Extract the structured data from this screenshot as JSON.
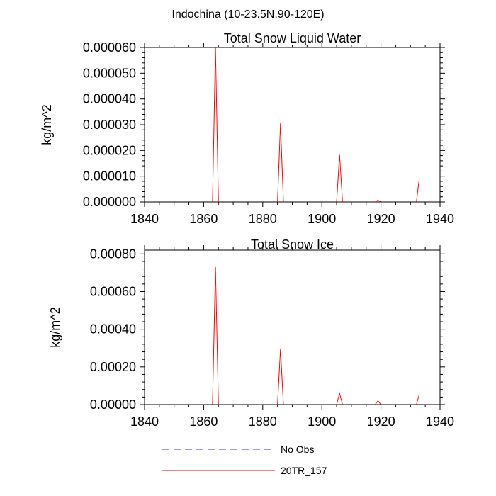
{
  "figure_title": "Indochina (10-23.5N,90-120E)",
  "colors": {
    "model": "#ff0000",
    "obs": "#3333cc",
    "axis": "#000000"
  },
  "legend": [
    {
      "label": "No Obs",
      "style": "dashed",
      "color": "#3333cc"
    },
    {
      "label": "20TR_157",
      "style": "solid",
      "color": "#ff0000"
    }
  ],
  "chart_data": [
    {
      "type": "line",
      "title": "Total Snow Liquid Water",
      "xlabel": "",
      "ylabel": "kg/m^2",
      "xlim": [
        1840,
        1940
      ],
      "ylim": [
        0,
        6e-05
      ],
      "xticks": [
        1840,
        1860,
        1880,
        1900,
        1920,
        1940
      ],
      "xtick_labels": [
        "1840",
        "1860",
        "1880",
        "1900",
        "1920",
        "1940"
      ],
      "yticks": [
        0,
        1e-05,
        2e-05,
        3e-05,
        4e-05,
        5e-05,
        6e-05
      ],
      "ytick_labels": [
        "0.000000",
        "0.000010",
        "0.000020",
        "0.000030",
        "0.000040",
        "0.000050",
        "0.000060"
      ],
      "series": [
        {
          "name": "20TR_157",
          "x": [
            1863,
            1864,
            1865,
            1885,
            1886,
            1887,
            1905,
            1906,
            1907,
            1918,
            1919,
            1920,
            1932,
            1933
          ],
          "values": [
            0,
            6e-05,
            0,
            0,
            3.05e-05,
            0,
            0,
            1.83e-05,
            0,
            0,
            7e-07,
            0,
            0,
            9.3e-06
          ]
        }
      ]
    },
    {
      "type": "line",
      "title": "Total Snow Ice",
      "xlabel": "",
      "ylabel": "kg/m^2",
      "xlim": [
        1840,
        1940
      ],
      "ylim": [
        0,
        0.00082
      ],
      "xticks": [
        1840,
        1860,
        1880,
        1900,
        1920,
        1940
      ],
      "xtick_labels": [
        "1840",
        "1860",
        "1880",
        "1900",
        "1920",
        "1940"
      ],
      "yticks": [
        0,
        0.0002,
        0.0004,
        0.0006,
        0.0008
      ],
      "ytick_labels": [
        "0.00000",
        "0.00020",
        "0.00040",
        "0.00060",
        "0.00080"
      ],
      "series": [
        {
          "name": "20TR_157",
          "x": [
            1863,
            1864,
            1865,
            1885,
            1886,
            1887,
            1905,
            1906,
            1907,
            1918,
            1919,
            1920,
            1932,
            1933
          ],
          "values": [
            0,
            0.00073,
            0,
            0,
            0.000295,
            0,
            0,
            6e-05,
            0,
            0,
            2e-05,
            0,
            0,
            5.5e-05
          ]
        }
      ]
    }
  ]
}
